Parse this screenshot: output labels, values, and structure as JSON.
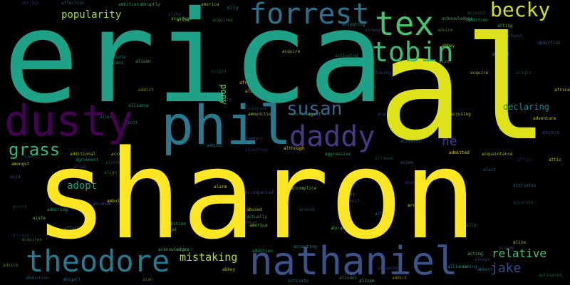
{
  "cloud": {
    "words": [
      {
        "text": "sharon",
        "color": "#fde725"
      },
      {
        "text": "erica",
        "color": "#1fa187"
      },
      {
        "text": "al",
        "color": "#dde318"
      },
      {
        "text": "phil",
        "color": "#2a788e"
      },
      {
        "text": "dusty",
        "color": "#440154"
      },
      {
        "text": "forrest",
        "color": "#2c728e"
      },
      {
        "text": "tex",
        "color": "#4ac16d"
      },
      {
        "text": "tobin",
        "color": "#3bbb75"
      },
      {
        "text": "becky",
        "color": "#d0e11c"
      },
      {
        "text": "daddy",
        "color": "#443983"
      },
      {
        "text": "susan",
        "color": "#31688e"
      },
      {
        "text": "nathaniel",
        "color": "#3b528b"
      },
      {
        "text": "theodore",
        "color": "#2a788e"
      },
      {
        "text": "grass",
        "color": "#35b779"
      },
      {
        "text": "relative",
        "color": "#4ac16d"
      },
      {
        "text": "jake",
        "color": "#3e4989"
      },
      {
        "text": "mistaking",
        "color": "#b5de2b"
      },
      {
        "text": "popularity",
        "color": "#a0da39"
      },
      {
        "text": "adopt",
        "color": "#1fa187"
      },
      {
        "text": "declaring",
        "color": "#26828e"
      },
      {
        "text": "ne",
        "color": "#443983"
      },
      {
        "text": "pony",
        "color": "#65cb5e"
      }
    ],
    "filler": [
      {
        "text": "abridge",
        "color": "#3e4989"
      },
      {
        "text": "affection",
        "color": "#31688e"
      },
      {
        "text": "ambition",
        "color": "#35b779"
      },
      {
        "text": "abruptly",
        "color": "#4ac16d"
      },
      {
        "text": "alpha",
        "color": "#287c8e"
      },
      {
        "text": "america",
        "color": "#90d743"
      },
      {
        "text": "ally",
        "color": "#2a788e"
      },
      {
        "text": "alive",
        "color": "#b5de2b"
      },
      {
        "text": "acquires",
        "color": "#65cb5e"
      },
      {
        "text": "accepting",
        "color": "#21918c"
      },
      {
        "text": "airway",
        "color": "#3e4989"
      },
      {
        "text": "acknowledges",
        "color": "#4ac16d"
      },
      {
        "text": "account",
        "color": "#1fa187"
      },
      {
        "text": "addition",
        "color": "#35b779"
      },
      {
        "text": "acting",
        "color": "#65cb5e"
      },
      {
        "text": "always",
        "color": "#3e4989"
      },
      {
        "text": "advice",
        "color": "#90d743"
      },
      {
        "text": "abbey",
        "color": "#b5de2b"
      },
      {
        "text": "abduction",
        "color": "#31688e"
      },
      {
        "text": "abigail",
        "color": "#2a788e"
      },
      {
        "text": "aian",
        "color": "#b5de2b"
      },
      {
        "text": "activate",
        "color": "#26828e"
      },
      {
        "text": "aliconi",
        "color": "#35b779"
      },
      {
        "text": "alison",
        "color": "#65cb5e"
      },
      {
        "text": "addict",
        "color": "#dde318"
      },
      {
        "text": "alliance",
        "color": "#22a884"
      },
      {
        "text": "aiming",
        "color": "#2a788e"
      },
      {
        "text": "abbott",
        "color": "#26828e"
      },
      {
        "text": "activated",
        "color": "#35b779"
      },
      {
        "text": "allowing",
        "color": "#3e4989"
      },
      {
        "text": "amends",
        "color": "#31688e"
      },
      {
        "text": "acquire",
        "color": "#90d743"
      },
      {
        "text": "origin",
        "color": "#21918c"
      },
      {
        "text": "african",
        "color": "#fde725"
      },
      {
        "text": "airfield",
        "color": "#3b528b"
      },
      {
        "text": "alone",
        "color": "#dde318"
      },
      {
        "text": "adopted",
        "color": "#31688e"
      },
      {
        "text": "ammunition",
        "color": "#b5de2b"
      },
      {
        "text": "accident",
        "color": "#65cb5e"
      },
      {
        "text": "academy",
        "color": "#3e4989"
      },
      {
        "text": "abortion",
        "color": "#90d743"
      },
      {
        "text": "agent",
        "color": "#a0da39"
      },
      {
        "text": "accusing",
        "color": "#b5de2b"
      },
      {
        "text": "adventure",
        "color": "#dde318"
      },
      {
        "text": "aftermath",
        "color": "#65cb5e"
      },
      {
        "text": "advance",
        "color": "#3e4989"
      },
      {
        "text": "support",
        "color": "#3b528b"
      },
      {
        "text": "ambush",
        "color": "#26828e"
      },
      {
        "text": "advantage",
        "color": "#3e4989"
      },
      {
        "text": "although",
        "color": "#fde725"
      },
      {
        "text": "activist",
        "color": "#26828e"
      },
      {
        "text": "additional",
        "color": "#b5de2b"
      },
      {
        "text": "admits",
        "color": "#2a788e"
      },
      {
        "text": "agreement",
        "color": "#22a884"
      },
      {
        "text": "accused",
        "color": "#90d743"
      },
      {
        "text": "alias",
        "color": "#3e4989"
      },
      {
        "text": "alcoholic",
        "color": "#21918c"
      },
      {
        "text": "amongst",
        "color": "#dde318"
      },
      {
        "text": "acid",
        "color": "#31688e"
      },
      {
        "text": "aggressive",
        "color": "#35b779"
      },
      {
        "text": "allowed",
        "color": "#26828e"
      },
      {
        "text": "aside",
        "color": "#31688e"
      },
      {
        "text": "admitted",
        "color": "#fde725"
      },
      {
        "text": "acquaintance",
        "color": "#b5de2b"
      },
      {
        "text": "affair",
        "color": "#3e4989"
      },
      {
        "text": "attic",
        "color": "#dde318"
      },
      {
        "text": "alert",
        "color": "#31688e"
      },
      {
        "text": "abandon",
        "color": "#443983"
      },
      {
        "text": "align",
        "color": "#65cb5e"
      },
      {
        "text": "alarm",
        "color": "#fde725"
      },
      {
        "text": "accompanied",
        "color": "#3e4989"
      },
      {
        "text": "accomplice",
        "color": "#90d743"
      },
      {
        "text": "alley",
        "color": "#65cb5e"
      },
      {
        "text": "activates",
        "color": "#2a788e"
      },
      {
        "text": "abraham",
        "color": "#3b528b"
      },
      {
        "text": "ambulance",
        "color": "#dde318"
      },
      {
        "text": "acorn",
        "color": "#26828e"
      },
      {
        "text": "admiring",
        "color": "#35b779"
      },
      {
        "text": "aisle",
        "color": "#90d743"
      },
      {
        "text": "abused",
        "color": "#b5de2b"
      },
      {
        "text": "around",
        "color": "#21918c"
      },
      {
        "text": "almost",
        "color": "#3e4989"
      },
      {
        "text": "action",
        "color": "#2a788e"
      },
      {
        "text": "arrive",
        "color": "#dde318"
      },
      {
        "text": "accurate",
        "color": "#21918c"
      },
      {
        "text": "actual",
        "color": "#3e4989"
      },
      {
        "text": "actually",
        "color": "#35b779"
      },
      {
        "text": "abroad",
        "color": "#35b779"
      }
    ]
  }
}
